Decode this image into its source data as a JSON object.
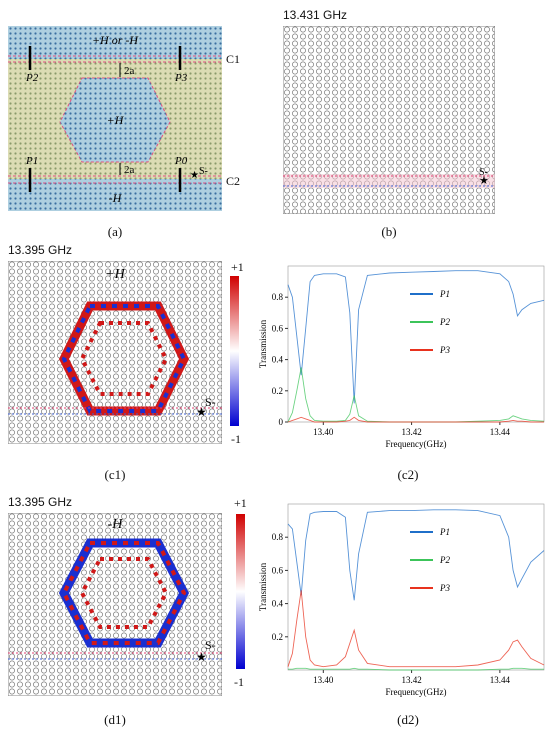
{
  "panel_a": {
    "label_top": "+H or -H",
    "label_center": "+H",
    "label_bottom": "-H",
    "c1": "C1",
    "c2": "C2",
    "gap_top": "2a",
    "gap_bottom": "2a",
    "ports": [
      "P2",
      "P3",
      "P1",
      "P0"
    ],
    "source": "S-",
    "caption": "(a)",
    "colors": {
      "outer": "#aecfe0",
      "middle": "#dcdcb4",
      "hex": "#aecfe0",
      "dot": "#3a6ea0"
    }
  },
  "panel_b": {
    "freq": "13.431 GHz",
    "source": "S-",
    "caption": "(b)"
  },
  "panel_c1": {
    "freq": "13.395 GHz",
    "field": "+H",
    "source": "S-",
    "caption": "(c1)",
    "cbar_max": "+1",
    "cbar_min": "-1"
  },
  "panel_d1": {
    "freq": "13.395 GHz",
    "field": "-H",
    "source": "S-",
    "caption": "(d1)",
    "cbar_max": "+1",
    "cbar_min": "-1"
  },
  "chart_data": [
    {
      "type": "line",
      "panel": "(c2)",
      "xlabel": "Frequency(GHz)",
      "ylabel": "Transmission",
      "xlim": [
        13.392,
        13.45
      ],
      "ylim": [
        0,
        1.0
      ],
      "xticks": [
        "13.40",
        "13.42",
        "13.44"
      ],
      "yticks": [
        "0",
        "0.2",
        "0.4",
        "0.6",
        "0.8"
      ],
      "legend": "center",
      "x": [
        13.392,
        13.393,
        13.394,
        13.395,
        13.396,
        13.397,
        13.398,
        13.4,
        13.403,
        13.405,
        13.406,
        13.407,
        13.408,
        13.41,
        13.415,
        13.42,
        13.425,
        13.43,
        13.435,
        13.44,
        13.442,
        13.443,
        13.444,
        13.445,
        13.447,
        13.45
      ],
      "series": [
        {
          "name": "P1",
          "color": "#1f6fc9",
          "values": [
            0.88,
            0.8,
            0.55,
            0.3,
            0.6,
            0.9,
            0.94,
            0.95,
            0.95,
            0.93,
            0.7,
            0.12,
            0.72,
            0.94,
            0.955,
            0.96,
            0.965,
            0.97,
            0.97,
            0.95,
            0.9,
            0.82,
            0.68,
            0.72,
            0.76,
            0.78
          ]
        },
        {
          "name": "P2",
          "color": "#3cc45a",
          "values": [
            0.0,
            0.06,
            0.2,
            0.35,
            0.15,
            0.04,
            0.01,
            0.005,
            0.005,
            0.01,
            0.05,
            0.17,
            0.04,
            0.005,
            0.0,
            0.0,
            0.0,
            0.0,
            0.005,
            0.01,
            0.02,
            0.04,
            0.03,
            0.02,
            0.01,
            0.005
          ]
        },
        {
          "name": "P3",
          "color": "#e8321e",
          "values": [
            0.0,
            0.01,
            0.02,
            0.03,
            0.02,
            0.01,
            0.0,
            0.0,
            0.0,
            0.005,
            0.01,
            0.03,
            0.01,
            0.0,
            0.0,
            0.0,
            0.0,
            0.0,
            0.0,
            0.0,
            0.005,
            0.01,
            0.005,
            0.005,
            0.0,
            0.0
          ]
        }
      ],
      "caption": "(c2)"
    },
    {
      "type": "line",
      "panel": "(d2)",
      "xlabel": "Frequency(GHz)",
      "ylabel": "Transmission",
      "xlim": [
        13.392,
        13.45
      ],
      "ylim": [
        0,
        1.0
      ],
      "xticks": [
        "13.40",
        "13.42",
        "13.44"
      ],
      "yticks": [
        "0.2",
        "0.4",
        "0.6",
        "0.8"
      ],
      "legend": "center",
      "x": [
        13.392,
        13.393,
        13.394,
        13.395,
        13.396,
        13.397,
        13.398,
        13.4,
        13.403,
        13.405,
        13.406,
        13.407,
        13.408,
        13.41,
        13.415,
        13.42,
        13.425,
        13.43,
        13.435,
        13.44,
        13.442,
        13.443,
        13.444,
        13.445,
        13.447,
        13.45
      ],
      "series": [
        {
          "name": "P1",
          "color": "#1f6fc9",
          "values": [
            0.88,
            0.85,
            0.65,
            0.45,
            0.78,
            0.94,
            0.95,
            0.955,
            0.955,
            0.92,
            0.6,
            0.42,
            0.7,
            0.95,
            0.96,
            0.96,
            0.965,
            0.965,
            0.96,
            0.93,
            0.8,
            0.6,
            0.5,
            0.55,
            0.65,
            0.72
          ]
        },
        {
          "name": "P2",
          "color": "#3cc45a",
          "values": [
            0.005,
            0.005,
            0.01,
            0.01,
            0.01,
            0.005,
            0.005,
            0.005,
            0.005,
            0.005,
            0.005,
            0.01,
            0.005,
            0.005,
            0.0,
            0.0,
            0.0,
            0.0,
            0.0,
            0.005,
            0.005,
            0.01,
            0.01,
            0.01,
            0.005,
            0.005
          ]
        },
        {
          "name": "P3",
          "color": "#e8321e",
          "values": [
            0.02,
            0.1,
            0.3,
            0.48,
            0.2,
            0.06,
            0.03,
            0.02,
            0.03,
            0.08,
            0.16,
            0.24,
            0.12,
            0.04,
            0.02,
            0.02,
            0.02,
            0.02,
            0.03,
            0.06,
            0.12,
            0.17,
            0.18,
            0.14,
            0.07,
            0.03
          ]
        }
      ],
      "caption": "(d2)"
    }
  ]
}
